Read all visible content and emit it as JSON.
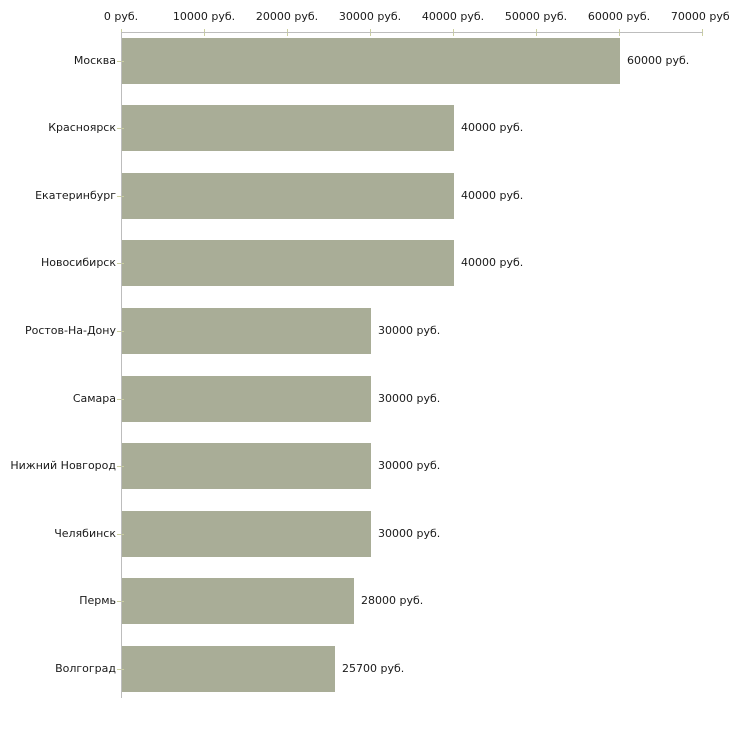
{
  "chart_data": {
    "type": "bar",
    "orientation": "horizontal",
    "title": "",
    "xlabel": "",
    "ylabel": "",
    "grid": false,
    "legend": false,
    "categories": [
      "Москва",
      "Красноярск",
      "Екатеринбург",
      "Новосибирск",
      "Ростов-На-Дону",
      "Самара",
      "Нижний Новгород",
      "Челябинск",
      "Пермь",
      "Волгоград"
    ],
    "values": [
      60000,
      40000,
      40000,
      40000,
      30000,
      30000,
      30000,
      30000,
      28000,
      25700
    ],
    "value_labels": [
      "60000 руб.",
      "40000 руб.",
      "40000 руб.",
      "40000 руб.",
      "30000 руб.",
      "30000 руб.",
      "30000 руб.",
      "30000 руб.",
      "28000 руб.",
      "25700 руб."
    ],
    "x_ticks": [
      0,
      10000,
      20000,
      30000,
      40000,
      50000,
      60000,
      70000
    ],
    "x_tick_labels": [
      "0 руб.",
      "10000 руб.",
      "20000 руб.",
      "30000 руб.",
      "40000 руб.",
      "50000 руб.",
      "60000 руб.",
      "70000 руб."
    ],
    "xlim": [
      0,
      70000
    ],
    "colors": {
      "bar": "#a9ad97",
      "tick_mark": "#ccd0a0",
      "axis_line": "#bdbdbd",
      "text": "#1a1a1a",
      "background": "#ffffff"
    }
  }
}
